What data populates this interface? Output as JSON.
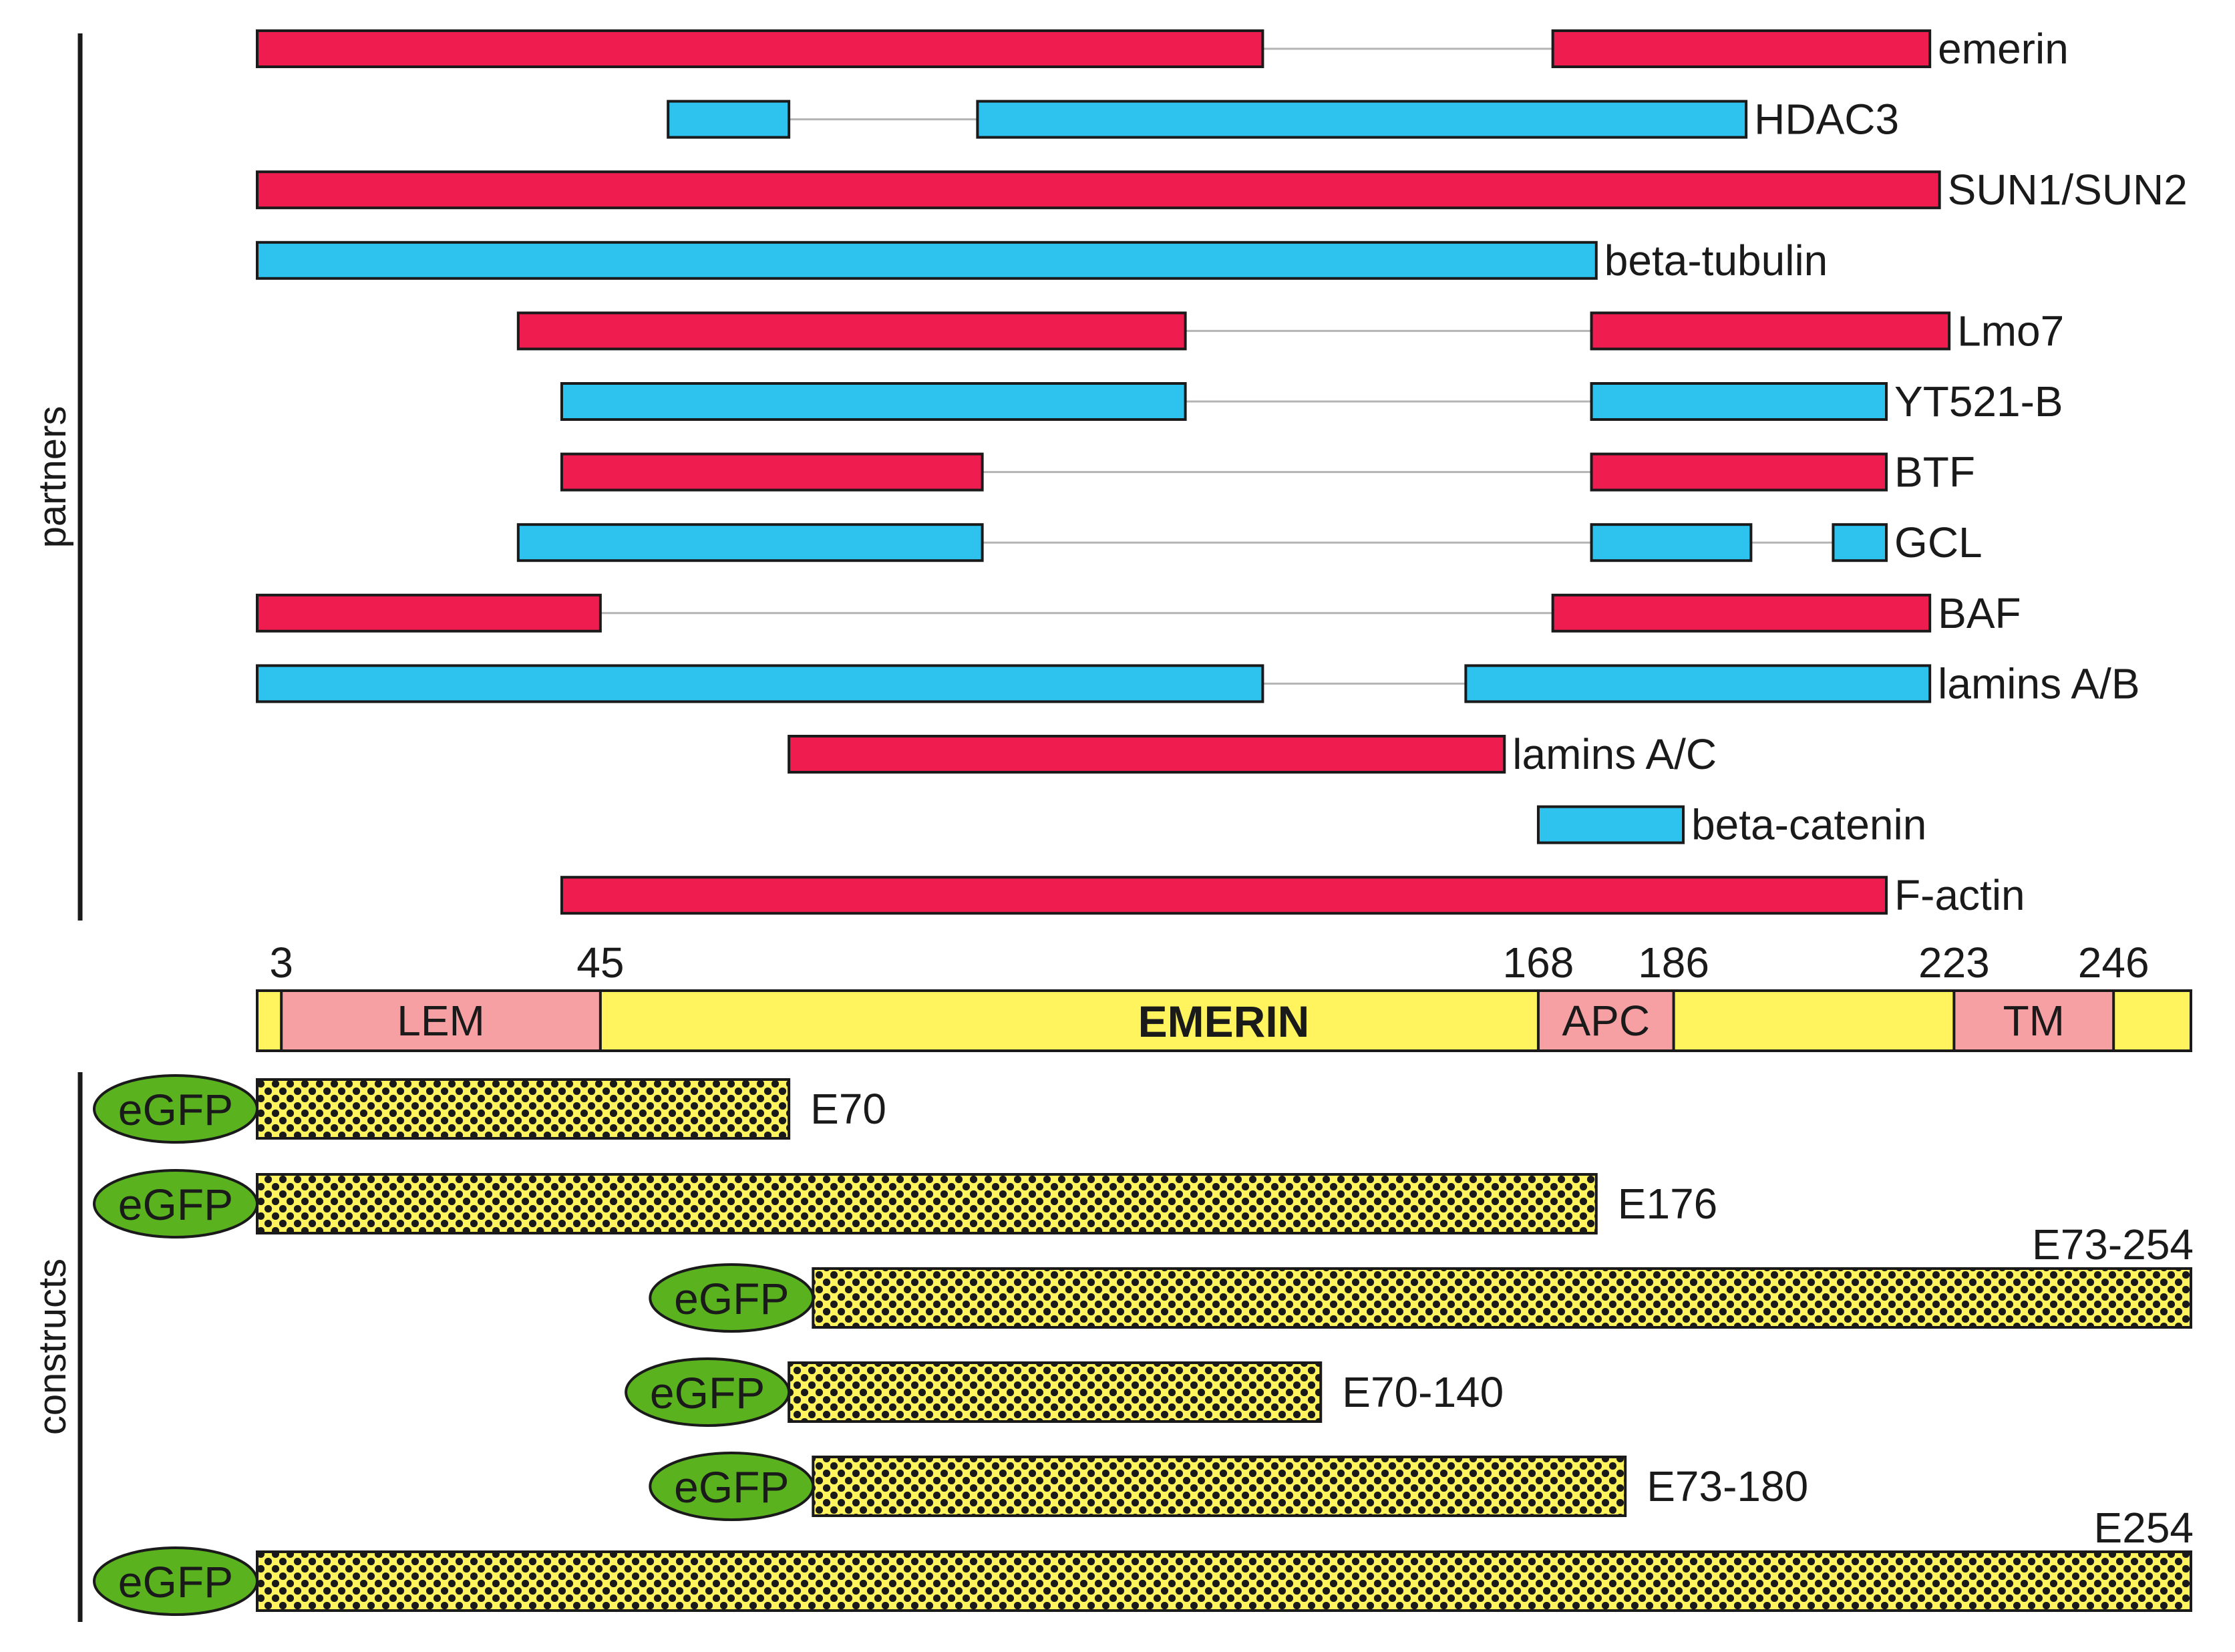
{
  "colors": {
    "partner_red": "#ee1c4f",
    "partner_blue": "#2dc3ee",
    "emerin_yellow": "#fff35e",
    "domain_pink": "#f7a0a4",
    "egfp_green": "#5ab31e",
    "construct_fill": "#fff35e",
    "construct_dots": "#1a1a1a",
    "connector": "#b4b4b4"
  },
  "labels": {
    "partners_axis": "partners",
    "constructs_axis": "constructs"
  },
  "partners": [
    {
      "name": "emerin",
      "color": "red",
      "segments": [
        [
          0,
          10.4
        ],
        [
          13.4,
          17.3
        ]
      ]
    },
    {
      "name": "HDAC3",
      "color": "blue",
      "segments": [
        [
          4.25,
          5.5
        ],
        [
          7.45,
          15.4
        ]
      ]
    },
    {
      "name": "SUN1/SUN2",
      "color": "red",
      "segments": [
        [
          0,
          17.4
        ]
      ]
    },
    {
      "name": "beta-tubulin",
      "color": "blue",
      "segments": [
        [
          0,
          13.85
        ]
      ]
    },
    {
      "name": "Lmo7",
      "color": "red",
      "segments": [
        [
          2.7,
          9.6
        ],
        [
          13.8,
          17.5
        ]
      ]
    },
    {
      "name": "YT521-B",
      "color": "blue",
      "segments": [
        [
          3.15,
          9.6
        ],
        [
          13.8,
          16.85
        ]
      ]
    },
    {
      "name": "BTF",
      "color": "red",
      "segments": [
        [
          3.15,
          7.5
        ],
        [
          13.8,
          16.85
        ]
      ]
    },
    {
      "name": "GCL",
      "color": "blue",
      "segments": [
        [
          2.7,
          7.5
        ],
        [
          13.8,
          15.45
        ],
        [
          16.3,
          16.85
        ]
      ]
    },
    {
      "name": "BAF",
      "color": "red",
      "segments": [
        [
          0,
          3.55
        ],
        [
          13.4,
          17.3
        ]
      ]
    },
    {
      "name": "lamins A/B",
      "color": "blue",
      "segments": [
        [
          0,
          10.4
        ],
        [
          12.5,
          17.3
        ]
      ]
    },
    {
      "name": "lamins A/C",
      "color": "red",
      "segments": [
        [
          5.5,
          12.9
        ]
      ]
    },
    {
      "name": "beta-catenin",
      "color": "blue",
      "segments": [
        [
          13.25,
          14.75
        ]
      ]
    },
    {
      "name": "F-actin",
      "color": "red",
      "segments": [
        [
          3.15,
          16.85
        ]
      ]
    }
  ],
  "emerin": {
    "label": "EMERIN",
    "positions": [
      {
        "label": "3",
        "value": 0.25
      },
      {
        "label": "45",
        "value": 3.55
      },
      {
        "label": "168",
        "value": 13.25
      },
      {
        "label": "186",
        "value": 14.65
      },
      {
        "label": "223",
        "value": 17.55
      },
      {
        "label": "246",
        "value": 19.2
      }
    ],
    "domains": [
      {
        "name": "LEM",
        "start": 0.25,
        "end": 3.55
      },
      {
        "name": "APC",
        "start": 13.25,
        "end": 14.65
      },
      {
        "name": "TM",
        "start": 17.55,
        "end": 19.2
      }
    ],
    "end": 20
  },
  "constructs": [
    {
      "name": "E70",
      "tag": "eGFP",
      "start": 0,
      "end": 5.5,
      "label_side": "right"
    },
    {
      "name": "E176",
      "tag": "eGFP",
      "start": 0,
      "end": 13.85,
      "label_side": "right"
    },
    {
      "name": "E73-254",
      "tag": "eGFP",
      "start": 5.75,
      "end": 20,
      "label_side": "above"
    },
    {
      "name": "E70-140",
      "tag": "eGFP",
      "start": 5.5,
      "end": 11,
      "label_side": "right"
    },
    {
      "name": "E73-180",
      "tag": "eGFP",
      "start": 5.75,
      "end": 14.15,
      "label_side": "right"
    },
    {
      "name": "E254",
      "tag": "eGFP",
      "start": 0,
      "end": 20,
      "label_side": "above"
    }
  ]
}
